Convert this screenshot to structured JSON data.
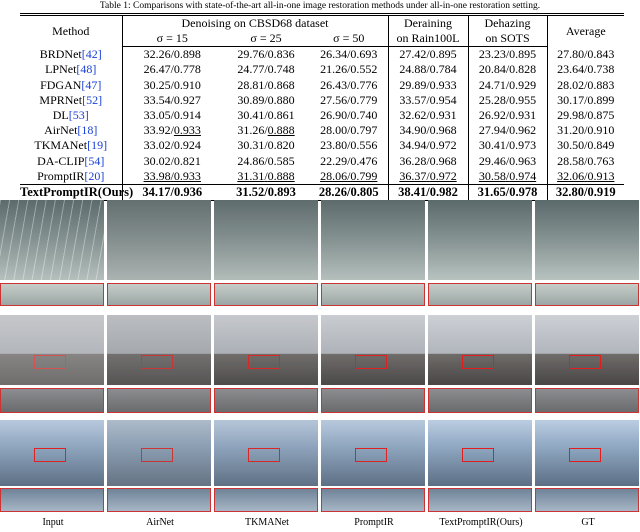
{
  "caption": "Table 1: Comparisons with state-of-the-art all-in-one image restoration methods under all-in-one restoration setting.",
  "table": {
    "header": [
      [
        "Method",
        "Denoising on CBSD68 dataset",
        "Deraining",
        "Dehazing",
        "Average"
      ],
      [
        "σ = 15",
        "σ = 25",
        "σ = 50",
        "on Rain100L",
        "on SOTS"
      ]
    ],
    "rows": [
      {
        "method": "BRDNet",
        "cite": "[42]",
        "cells": [
          "32.26/0.898",
          "29.76/0.836",
          "26.34/0.693",
          "27.42/0.895",
          "23.23/0.895",
          "27.80/0.843"
        ]
      },
      {
        "method": "LPNet",
        "cite": "[48]",
        "cells": [
          "26.47/0.778",
          "24.77/0.748",
          "21.26/0.552",
          "24.88/0.784",
          "20.84/0.828",
          "23.64/0.738"
        ]
      },
      {
        "method": "FDGAN",
        "cite": "[47]",
        "cells": [
          "30.25/0.910",
          "28.81/0.868",
          "26.43/0.776",
          "29.89/0.933",
          "24.71/0.929",
          "28.02/0.883"
        ]
      },
      {
        "method": "MPRNet",
        "cite": "[52]",
        "cells": [
          "33.54/0.927",
          "30.89/0.880",
          "27.56/0.779",
          "33.57/0.954",
          "25.28/0.955",
          "30.17/0.899"
        ]
      },
      {
        "method": "DL",
        "cite": "[53]",
        "cells": [
          "33.05/0.914",
          "30.41/0.861",
          "26.90/0.740",
          "32.62/0.931",
          "26.92/0.931",
          "29.98/0.875"
        ]
      },
      {
        "method": "AirNet",
        "cite": "[18]",
        "cells": [
          "33.92/0.933",
          "31.26/0.888",
          "28.00/0.797",
          "34.90/0.968",
          "27.94/0.962",
          "31.20/0.910"
        ]
      },
      {
        "method": "TKMANet",
        "cite": "[19]",
        "cells": [
          "33.02/0.924",
          "30.31/0.820",
          "23.80/0.556",
          "34.94/0.972",
          "30.41/0.973",
          "30.50/0.849"
        ]
      },
      {
        "method": "DA-CLIP",
        "cite": "[54]",
        "cells": [
          "30.02/0.821",
          "24.86/0.585",
          "22.29/0.476",
          "36.28/0.968",
          "29.46/0.963",
          "28.58/0.763"
        ]
      },
      {
        "method": "PromptIR",
        "cite": "[20]",
        "cells": [
          "33.98/0.933",
          "31.31/0.888",
          "28.06/0.799",
          "36.37/0.972",
          "30.58/0.974",
          "32.06/0.913"
        ]
      },
      {
        "method": "TextPromptIR(Ours)",
        "cite": null,
        "cells": [
          "34.17/0.936",
          "31.52/0.893",
          "28.26/0.805",
          "38.41/0.982",
          "31.65/0.978",
          "32.80/0.919"
        ]
      }
    ]
  },
  "figure_labels": [
    "Input",
    "AirNet",
    "TKMANet",
    "PromptIR",
    "TextPromptIR(Ours)",
    "GT"
  ]
}
